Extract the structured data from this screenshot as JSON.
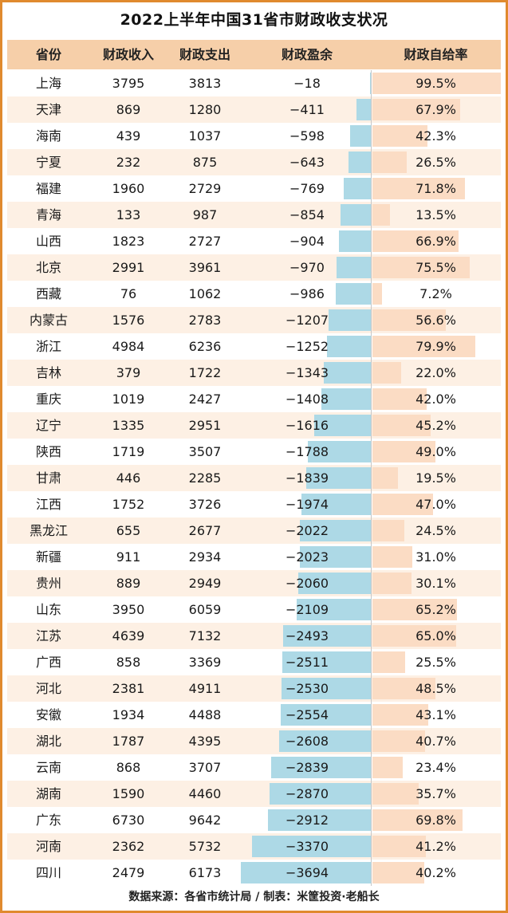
{
  "title": "2022上半年中国31省市财政收支状况",
  "headers": {
    "province": "省份",
    "revenue": "财政收入",
    "expenditure": "财政支出",
    "surplus": "财政盈余",
    "ratio": "财政自给率"
  },
  "source": "数据来源：各省市统计局 / 制表：米筐投资·老船长",
  "colors": {
    "border": "#e08a2e",
    "header_bg": "#f6cfa9",
    "row_alt": "#fdf0e4",
    "surplus_bar": "#add9e6",
    "ratio_bar": "#fbdcc4"
  },
  "chart_data": {
    "type": "table",
    "columns": [
      "省份",
      "财政收入",
      "财政支出",
      "财政盈余",
      "财政自给率"
    ],
    "rows": [
      {
        "province": "上海",
        "revenue": "3795",
        "expenditure": "3813",
        "surplus": -18,
        "surplus_label": "−18",
        "ratio": 99.5,
        "ratio_label": "99.5%"
      },
      {
        "province": "天津",
        "revenue": "869",
        "expenditure": "1280",
        "surplus": -411,
        "surplus_label": "−411",
        "ratio": 67.9,
        "ratio_label": "67.9%"
      },
      {
        "province": "海南",
        "revenue": "439",
        "expenditure": "1037",
        "surplus": -598,
        "surplus_label": "−598",
        "ratio": 42.3,
        "ratio_label": "42.3%"
      },
      {
        "province": "宁夏",
        "revenue": "232",
        "expenditure": "875",
        "surplus": -643,
        "surplus_label": "−643",
        "ratio": 26.5,
        "ratio_label": "26.5%"
      },
      {
        "province": "福建",
        "revenue": "1960",
        "expenditure": "2729",
        "surplus": -769,
        "surplus_label": "−769",
        "ratio": 71.8,
        "ratio_label": "71.8%"
      },
      {
        "province": "青海",
        "revenue": "133",
        "expenditure": "987",
        "surplus": -854,
        "surplus_label": "−854",
        "ratio": 13.5,
        "ratio_label": "13.5%"
      },
      {
        "province": "山西",
        "revenue": "1823",
        "expenditure": "2727",
        "surplus": -904,
        "surplus_label": "−904",
        "ratio": 66.9,
        "ratio_label": "66.9%"
      },
      {
        "province": "北京",
        "revenue": "2991",
        "expenditure": "3961",
        "surplus": -970,
        "surplus_label": "−970",
        "ratio": 75.5,
        "ratio_label": "75.5%"
      },
      {
        "province": "西藏",
        "revenue": "76",
        "expenditure": "1062",
        "surplus": -986,
        "surplus_label": "−986",
        "ratio": 7.2,
        "ratio_label": "7.2%"
      },
      {
        "province": "内蒙古",
        "revenue": "1576",
        "expenditure": "2783",
        "surplus": -1207,
        "surplus_label": "−1207",
        "ratio": 56.6,
        "ratio_label": "56.6%"
      },
      {
        "province": "浙江",
        "revenue": "4984",
        "expenditure": "6236",
        "surplus": -1252,
        "surplus_label": "−1252",
        "ratio": 79.9,
        "ratio_label": "79.9%"
      },
      {
        "province": "吉林",
        "revenue": "379",
        "expenditure": "1722",
        "surplus": -1343,
        "surplus_label": "−1343",
        "ratio": 22.0,
        "ratio_label": "22.0%"
      },
      {
        "province": "重庆",
        "revenue": "1019",
        "expenditure": "2427",
        "surplus": -1408,
        "surplus_label": "−1408",
        "ratio": 42.0,
        "ratio_label": "42.0%"
      },
      {
        "province": "辽宁",
        "revenue": "1335",
        "expenditure": "2951",
        "surplus": -1616,
        "surplus_label": "−1616",
        "ratio": 45.2,
        "ratio_label": "45.2%"
      },
      {
        "province": "陕西",
        "revenue": "1719",
        "expenditure": "3507",
        "surplus": -1788,
        "surplus_label": "−1788",
        "ratio": 49.0,
        "ratio_label": "49.0%"
      },
      {
        "province": "甘肃",
        "revenue": "446",
        "expenditure": "2285",
        "surplus": -1839,
        "surplus_label": "−1839",
        "ratio": 19.5,
        "ratio_label": "19.5%"
      },
      {
        "province": "江西",
        "revenue": "1752",
        "expenditure": "3726",
        "surplus": -1974,
        "surplus_label": "−1974",
        "ratio": 47.0,
        "ratio_label": "47.0%"
      },
      {
        "province": "黑龙江",
        "revenue": "655",
        "expenditure": "2677",
        "surplus": -2022,
        "surplus_label": "−2022",
        "ratio": 24.5,
        "ratio_label": "24.5%"
      },
      {
        "province": "新疆",
        "revenue": "911",
        "expenditure": "2934",
        "surplus": -2023,
        "surplus_label": "−2023",
        "ratio": 31.0,
        "ratio_label": "31.0%"
      },
      {
        "province": "贵州",
        "revenue": "889",
        "expenditure": "2949",
        "surplus": -2060,
        "surplus_label": "−2060",
        "ratio": 30.1,
        "ratio_label": "30.1%"
      },
      {
        "province": "山东",
        "revenue": "3950",
        "expenditure": "6059",
        "surplus": -2109,
        "surplus_label": "−2109",
        "ratio": 65.2,
        "ratio_label": "65.2%"
      },
      {
        "province": "江苏",
        "revenue": "4639",
        "expenditure": "7132",
        "surplus": -2493,
        "surplus_label": "−2493",
        "ratio": 65.0,
        "ratio_label": "65.0%"
      },
      {
        "province": "广西",
        "revenue": "858",
        "expenditure": "3369",
        "surplus": -2511,
        "surplus_label": "−2511",
        "ratio": 25.5,
        "ratio_label": "25.5%"
      },
      {
        "province": "河北",
        "revenue": "2381",
        "expenditure": "4911",
        "surplus": -2530,
        "surplus_label": "−2530",
        "ratio": 48.5,
        "ratio_label": "48.5%"
      },
      {
        "province": "安徽",
        "revenue": "1934",
        "expenditure": "4488",
        "surplus": -2554,
        "surplus_label": "−2554",
        "ratio": 43.1,
        "ratio_label": "43.1%"
      },
      {
        "province": "湖北",
        "revenue": "1787",
        "expenditure": "4395",
        "surplus": -2608,
        "surplus_label": "−2608",
        "ratio": 40.7,
        "ratio_label": "40.7%"
      },
      {
        "province": "云南",
        "revenue": "868",
        "expenditure": "3707",
        "surplus": -2839,
        "surplus_label": "−2839",
        "ratio": 23.4,
        "ratio_label": "23.4%"
      },
      {
        "province": "湖南",
        "revenue": "1590",
        "expenditure": "4460",
        "surplus": -2870,
        "surplus_label": "−2870",
        "ratio": 35.7,
        "ratio_label": "35.7%"
      },
      {
        "province": "广东",
        "revenue": "6730",
        "expenditure": "9642",
        "surplus": -2912,
        "surplus_label": "−2912",
        "ratio": 69.8,
        "ratio_label": "69.8%"
      },
      {
        "province": "河南",
        "revenue": "2362",
        "expenditure": "5732",
        "surplus": -3370,
        "surplus_label": "−3370",
        "ratio": 41.2,
        "ratio_label": "41.2%"
      },
      {
        "province": "四川",
        "revenue": "2479",
        "expenditure": "6173",
        "surplus": -3694,
        "surplus_label": "−3694",
        "ratio": 40.2,
        "ratio_label": "40.2%"
      }
    ]
  }
}
